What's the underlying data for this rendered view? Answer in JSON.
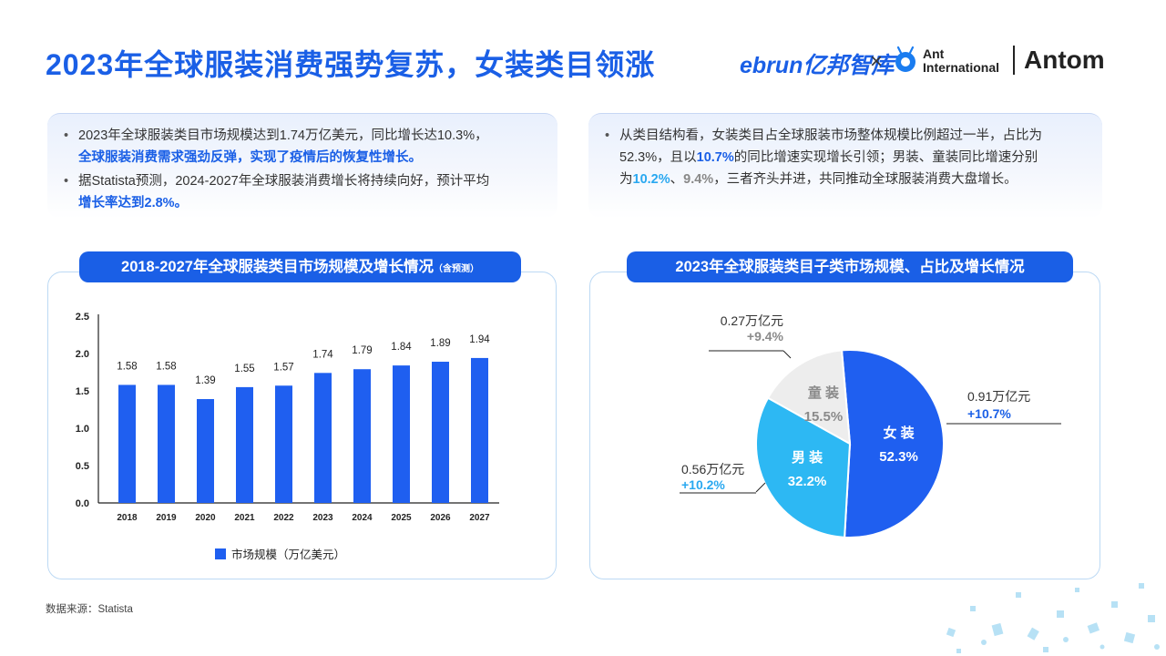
{
  "header": {
    "title": "2023年全球服装消费强势复苏，女装类目领涨",
    "logo_ebrun": "ebrun亿邦智库",
    "logo_x": "×",
    "logo_ant_line1": "Ant",
    "logo_ant_line2": "International",
    "logo_antom": "Antom"
  },
  "summary_left": {
    "bullet1_a": "2023年全球服装类目市场规模达到1.74万亿美元，同比增长达10.3%，",
    "bullet1_b": "全球服装消费需求强劲反弹，实现了疫情后的恢复性增长。",
    "bullet2_a": "据Statista预测，2024-2027年全球服装消费增长将持续向好，预计平均",
    "bullet2_b": "增长率达到2.8%。"
  },
  "summary_right": {
    "line1": "从类目结构看，女装类目占全球服装市场整体规模比例超过一半，占比为",
    "line2_a": "52.3%，且以",
    "line2_b": "10.7%",
    "line2_c": "的同比增速实现增长引领；男装、童装同比增速分别",
    "line3_a": "为",
    "line3_b": "10.2%",
    "line3_c": "、",
    "line3_d": "9.4%",
    "line3_e": "，三者齐头并进，共同推动全球服装消费大盘增长。"
  },
  "bar_panel": {
    "title": "2018-2027年全球服装类目市场规模及增长情况",
    "title_note": "（含预测）",
    "legend": "市场规模（万亿美元）"
  },
  "pie_panel": {
    "title": "2023年全球服装类目子类市场规模、占比及增长情况"
  },
  "colors": {
    "bar": "#1f5ff0",
    "women": "#1f5ff0",
    "men": "#2db8f3",
    "kids": "#ededed",
    "accent_blue": "#1a5fe6",
    "accent_cyan": "#29a8f0"
  },
  "chart_data": [
    {
      "type": "bar",
      "categories": [
        "2018",
        "2019",
        "2020",
        "2021",
        "2022",
        "2023",
        "2024",
        "2025",
        "2026",
        "2027"
      ],
      "series": [
        {
          "name": "市场规模（万亿美元）",
          "values": [
            1.58,
            1.58,
            1.39,
            1.55,
            1.57,
            1.74,
            1.79,
            1.84,
            1.89,
            1.94
          ]
        }
      ],
      "data_labels": [
        "1.58",
        "1.58",
        "1.39",
        "1.55",
        "1.57",
        "1.74",
        "1.79",
        "1.84",
        "1.89",
        "1.94"
      ],
      "y_ticks": [
        "0.0",
        "0.5",
        "1.0",
        "1.5",
        "2.0",
        "2.5"
      ],
      "ylim": [
        0,
        2.5
      ],
      "grid": false,
      "legend_position": "bottom"
    },
    {
      "type": "pie",
      "slices": [
        {
          "label": "女 装",
          "share": 52.3,
          "share_text": "52.3%",
          "size_text": "0.91万亿元",
          "growth_text": "+10.7%",
          "color": "#1f5ff0"
        },
        {
          "label": "男 装",
          "share": 32.2,
          "share_text": "32.2%",
          "size_text": "0.56万亿元",
          "growth_text": "+10.2%",
          "color": "#2db8f3"
        },
        {
          "label": "童 装",
          "share": 15.5,
          "share_text": "15.5%",
          "size_text": "0.27万亿元",
          "growth_text": "+9.4%",
          "color": "#ededed"
        }
      ]
    }
  ],
  "source": "数据来源：Statista"
}
